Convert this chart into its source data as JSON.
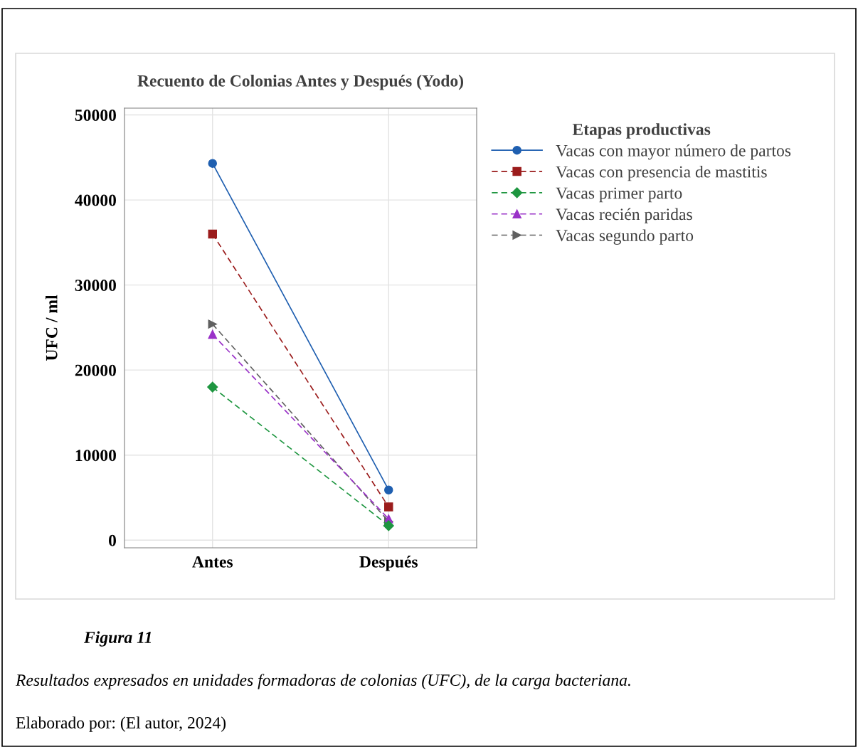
{
  "chart_data": {
    "type": "line",
    "title": "Recuento de Colonias Antes y Después (Yodo)",
    "ylabel": "UFC / ml",
    "legend_title": "Etapas productivas",
    "categories": [
      "Antes",
      "Después"
    ],
    "series": [
      {
        "name": "Vacas con mayor número de partos",
        "color": "#1f5fb0",
        "values": [
          44300,
          5900
        ],
        "marker": "circle",
        "line_style": "solid"
      },
      {
        "name": "Vacas con presencia de mastitis",
        "color": "#9b1c1c",
        "values": [
          36000,
          3900
        ],
        "marker": "square",
        "line_style": "dashed"
      },
      {
        "name": "Vacas primer parto",
        "color": "#1e9640",
        "values": [
          18000,
          1700
        ],
        "marker": "diamond",
        "line_style": "dashed"
      },
      {
        "name": "Vacas recién paridas",
        "color": "#9a32c8",
        "values": [
          24200,
          2500
        ],
        "marker": "triangle",
        "line_style": "dashed"
      },
      {
        "name": "Vacas segundo parto",
        "color": "#606060",
        "values": [
          25400,
          2200
        ],
        "marker": "triangle_right",
        "line_style": "dashed"
      }
    ],
    "ylim": [
      -900,
      50800
    ],
    "yticks": [
      0,
      10000,
      20000,
      30000,
      40000,
      50000
    ],
    "grid": true,
    "legend": "right",
    "annotations": [
      "Figura 11",
      "Resultados expresados en unidades formadoras de colonias (UFC), de la carga bacteriana.",
      "Elaborado por: (El autor, 2024)"
    ]
  }
}
